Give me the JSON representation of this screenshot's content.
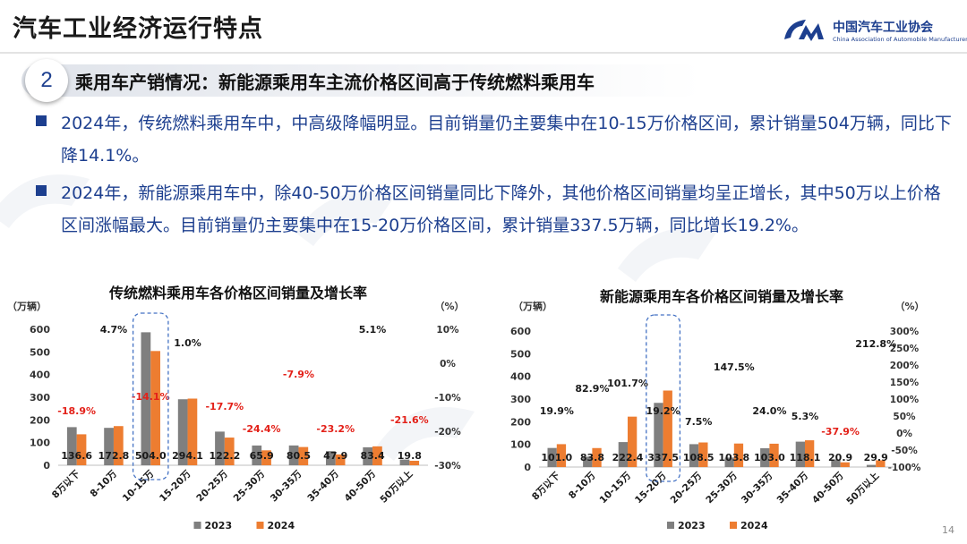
{
  "page": {
    "title": "汽车工业经济运行特点",
    "page_number": "14",
    "logo": {
      "cn": "中国汽车工业协会",
      "en": "China Association of Automobile Manufacturers"
    }
  },
  "section": {
    "number": "2",
    "title": "乘用车产销情况：新能源乘用车主流价格区间高于传统燃料乘用车"
  },
  "bullets": [
    "2024年，传统燃料乘用车中，中高级降幅明显。目前销量仍主要集中在10-15万价格区间，累计销量504万辆，同比下降14.1%。",
    "2024年，新能源乘用车中，除40-50万价格区间销量同比下降外，其他价格区间销量均呈正增长，其中50万以上价格区间涨幅最大。目前销量仍主要集中在15-20万价格区间，累计销量337.5万辆，同比增长19.2%。"
  ],
  "colors": {
    "series_2023": "#7f7f7f",
    "series_2024": "#ed7d31",
    "negative": "#e32119",
    "highlight_box": "#4472c4",
    "brand": "#1d3f8f"
  },
  "chart_data": [
    {
      "type": "bar",
      "title": "传统燃料乘用车各价格区间销量及增长率",
      "left_unit": "（万辆）",
      "right_unit": "（%）",
      "categories": [
        "8万以下",
        "8-10万",
        "10-15万",
        "15-20万",
        "20-25万",
        "25-30万",
        "30-35万",
        "35-40万",
        "40-50万",
        "50万以上"
      ],
      "series": [
        {
          "name": "2023",
          "values": [
            168.2,
            165.1,
            586.7,
            291.2,
            148.5,
            87.2,
            87.4,
            62.4,
            79.3,
            25.3
          ]
        },
        {
          "name": "2024",
          "values": [
            136.6,
            172.8,
            504.0,
            294.1,
            122.2,
            65.9,
            80.5,
            47.9,
            83.4,
            19.8
          ]
        }
      ],
      "value_labels": [
        "136.6",
        "172.8",
        "504.0",
        "294.1",
        "122.2",
        "65.9",
        "80.5",
        "47.9",
        "83.4",
        "19.8"
      ],
      "growth_rates": [
        -18.9,
        4.7,
        -14.1,
        1.0,
        -17.7,
        -24.4,
        -7.9,
        -23.2,
        5.1,
        -21.6
      ],
      "growth_labels": [
        "-18.9%",
        "4.7%",
        "-14.1%",
        "1.0%",
        "-17.7%",
        "-24.4%",
        "-7.9%",
        "-23.2%",
        "5.1%",
        "-21.6%"
      ],
      "ylim": [
        0,
        600
      ],
      "y_ticks": [
        "0",
        "100",
        "200",
        "300",
        "400",
        "500",
        "600"
      ],
      "y2lim": [
        -30,
        10
      ],
      "y2_ticks": [
        "-30%",
        "-20%",
        "-10%",
        "0%",
        "10%"
      ],
      "highlight_category": "10-15万",
      "legend": [
        "2023",
        "2024"
      ],
      "legend_position": "bottom"
    },
    {
      "type": "bar",
      "title": "新能源乘用车各价格区间销量及增长率",
      "left_unit": "（万辆）",
      "right_unit": "（%）",
      "categories": [
        "8万以下",
        "8-10万",
        "10-15万",
        "15-20万",
        "20-25万",
        "25-30万",
        "30-35万",
        "35-40万",
        "40-50万",
        "50万以上"
      ],
      "series": [
        {
          "name": "2023",
          "values": [
            84.2,
            45.8,
            110.2,
            283.2,
            101.0,
            41.9,
            83.1,
            112.1,
            33.6,
            9.5
          ]
        },
        {
          "name": "2024",
          "values": [
            101.0,
            83.8,
            222.4,
            337.5,
            108.5,
            103.8,
            103.0,
            118.1,
            20.9,
            29.9
          ]
        }
      ],
      "value_labels": [
        "101.0",
        "83.8",
        "222.4",
        "337.5",
        "108.5",
        "103.8",
        "103.0",
        "118.1",
        "20.9",
        "29.9"
      ],
      "growth_rates": [
        19.9,
        82.9,
        101.7,
        19.2,
        7.5,
        147.5,
        24.0,
        5.3,
        -37.9,
        212.8
      ],
      "growth_labels": [
        "19.9%",
        "82.9%",
        "101.7%",
        "19.2%",
        "7.5%",
        "147.5%",
        "24.0%",
        "5.3%",
        "-37.9%",
        "212.8%"
      ],
      "ylim": [
        0,
        600
      ],
      "y_ticks": [
        "0",
        "100",
        "200",
        "300",
        "400",
        "500",
        "600"
      ],
      "y2lim": [
        -100,
        300
      ],
      "y2_ticks": [
        "-100%",
        "-50%",
        "0%",
        "50%",
        "100%",
        "150%",
        "200%",
        "250%",
        "300%"
      ],
      "highlight_category": "15-20万",
      "legend": [
        "2023",
        "2024"
      ],
      "legend_position": "bottom"
    }
  ]
}
